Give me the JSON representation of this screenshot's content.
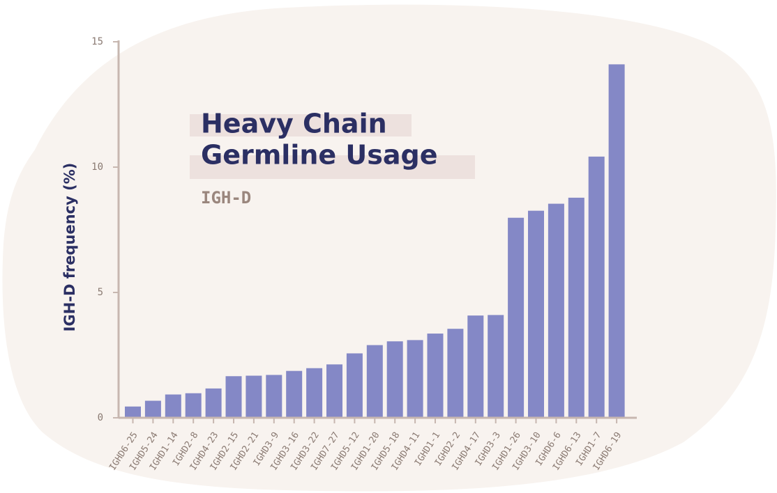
{
  "chart_data": {
    "type": "bar",
    "title_lines": [
      "Heavy Chain",
      "Germline Usage"
    ],
    "subtitle": "IGH-D",
    "ylabel": "IGH-D frequency (%)",
    "xlabel": "",
    "ylim": [
      0,
      15
    ],
    "yticks": [
      0,
      5,
      10,
      15
    ],
    "categories": [
      "IGHD6-25",
      "IGHD5-24",
      "IGHD1-14",
      "IGHD2-8",
      "IGHD4-23",
      "IGHD2-15",
      "IGHD2-21",
      "IGHD3-9",
      "IGHD3-16",
      "IGHD3-22",
      "IGHD7-27",
      "IGHD5-12",
      "IGHD1-20",
      "IGHD5-18",
      "IGHD4-11",
      "IGHD1-1",
      "IGHD2-2",
      "IGHD4-17",
      "IGHD3-3",
      "IGHD1-26",
      "IGHD3-10",
      "IGHD6-6",
      "IGHD6-13",
      "IGHD1-7",
      "IGHD6-19"
    ],
    "values": [
      0.45,
      0.68,
      0.93,
      0.98,
      1.17,
      1.66,
      1.68,
      1.71,
      1.87,
      1.98,
      2.13,
      2.57,
      2.9,
      3.05,
      3.1,
      3.36,
      3.55,
      4.08,
      4.1,
      7.98,
      8.26,
      8.54,
      8.78,
      10.42,
      14.1
    ],
    "colors": {
      "bar": "#8488c6",
      "blob": "#f8f3ef",
      "axis": "#c7b7b0",
      "title": "#2b2f63",
      "title_highlight": "#ede1de",
      "subtitle": "#9a867d"
    }
  }
}
